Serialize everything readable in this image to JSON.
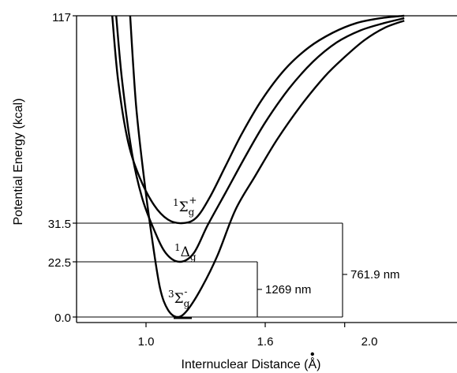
{
  "chart_data": {
    "type": "line",
    "title": "",
    "xlabel": "Internuclear Distance (Å)",
    "xlabel_marked_letter": "Å",
    "ylabel": "Potential Energy (kcal)",
    "xlim": [
      0.7,
      2.3
    ],
    "ylim": [
      0,
      117
    ],
    "x_ticks": [
      "1.0",
      "1.6",
      "2.0"
    ],
    "y_ticks": [
      "0.0",
      "22.5",
      "31.5",
      "117"
    ],
    "grid": false,
    "legend": "none",
    "series": [
      {
        "name": "³Σg⁻",
        "label": {
          "mult": "3",
          "sym": "Σ",
          "sub": "g",
          "sup": "-"
        },
        "points": [
          [
            0.92,
            117
          ],
          [
            0.95,
            80
          ],
          [
            0.99,
            50
          ],
          [
            1.03,
            28
          ],
          [
            1.07,
            12
          ],
          [
            1.11,
            3
          ],
          [
            1.16,
            0.0
          ],
          [
            1.21,
            3
          ],
          [
            1.28,
            12
          ],
          [
            1.36,
            24
          ],
          [
            1.45,
            37
          ],
          [
            1.55,
            51
          ],
          [
            1.66,
            66
          ],
          [
            1.78,
            80
          ],
          [
            1.9,
            92
          ],
          [
            2.0,
            100
          ],
          [
            2.1,
            107
          ],
          [
            2.2,
            112
          ],
          [
            2.3,
            115
          ]
        ]
      },
      {
        "name": "¹Δg",
        "label": {
          "mult": "1",
          "sym": "Δ",
          "sub": "g",
          "sup": ""
        },
        "points": [
          [
            0.85,
            117
          ],
          [
            0.88,
            90
          ],
          [
            0.93,
            60
          ],
          [
            0.98,
            42
          ],
          [
            1.04,
            30
          ],
          [
            1.1,
            24.5
          ],
          [
            1.17,
            22.5
          ],
          [
            1.24,
            24.5
          ],
          [
            1.31,
            31
          ],
          [
            1.4,
            44
          ],
          [
            1.5,
            59
          ],
          [
            1.6,
            73
          ],
          [
            1.72,
            87
          ],
          [
            1.84,
            98
          ],
          [
            1.96,
            106
          ],
          [
            2.08,
            111
          ],
          [
            2.2,
            114
          ],
          [
            2.3,
            116
          ]
        ]
      },
      {
        "name": "¹Σg⁺",
        "label": {
          "mult": "1",
          "sym": "Σ",
          "sub": "g",
          "sup": "+"
        },
        "points": [
          [
            0.83,
            117
          ],
          [
            0.86,
            90
          ],
          [
            0.91,
            65
          ],
          [
            0.97,
            50
          ],
          [
            1.04,
            39
          ],
          [
            1.11,
            33
          ],
          [
            1.18,
            31.5
          ],
          [
            1.25,
            33.5
          ],
          [
            1.32,
            42
          ],
          [
            1.4,
            55
          ],
          [
            1.48,
            68
          ],
          [
            1.58,
            82
          ],
          [
            1.7,
            95
          ],
          [
            1.82,
            104
          ],
          [
            1.94,
            110
          ],
          [
            2.06,
            114
          ],
          [
            2.18,
            116
          ],
          [
            2.3,
            117
          ]
        ]
      }
    ],
    "annotations": [
      {
        "text": "1269 nm",
        "from_y": 0.0,
        "to_y": 22.5
      },
      {
        "text": "761.9 nm",
        "from_y": 0.0,
        "to_y": 31.5
      }
    ]
  }
}
